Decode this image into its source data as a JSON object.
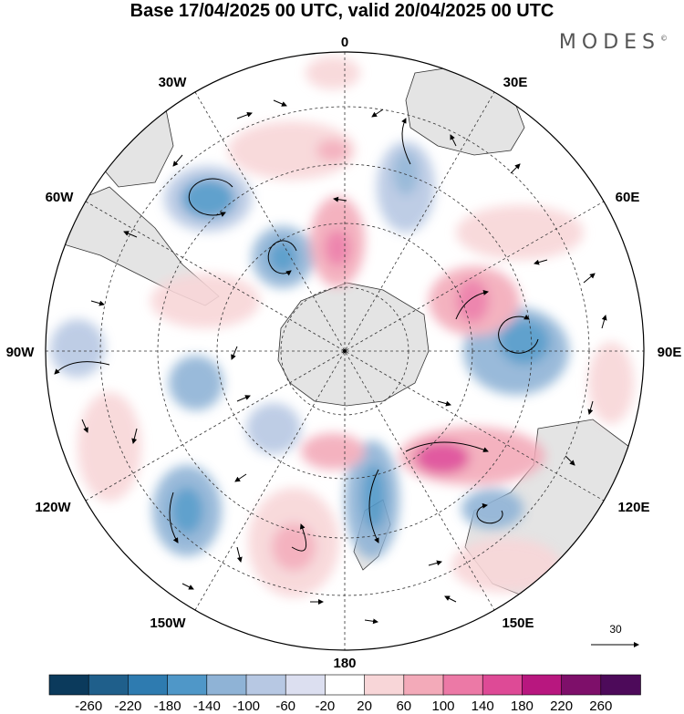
{
  "title": "Base 17/04/2025 00 UTC, valid 20/04/2025 00 UTC",
  "brand": "MODES",
  "brand_mark": "©",
  "longitude_labels": {
    "top": "0",
    "top_right": "30E",
    "right_upper": "60E",
    "right": "90E",
    "right_lower": "120E",
    "bottom_right": "150E",
    "bottom": "180",
    "bottom_left": "150W",
    "left_lower": "120W",
    "left": "90W",
    "left_upper": "60W",
    "top_left": "30W"
  },
  "reference_vector": {
    "label": "30",
    "icon": "arrow-right-icon"
  },
  "colorbar": {
    "ticks": [
      "-260",
      "-220",
      "-180",
      "-140",
      "-100",
      "-60",
      "-20",
      "20",
      "60",
      "100",
      "140",
      "180",
      "220",
      "260"
    ],
    "colors": [
      "#0b3a5c",
      "#1f5f8b",
      "#2e7bb0",
      "#4f97c8",
      "#8fb3d6",
      "#b7c8e3",
      "#dcdff0",
      "#ffffff",
      "#f8d6d8",
      "#f3aab9",
      "#ec79a6",
      "#de4a96",
      "#b8177f",
      "#7e0f6a",
      "#4d0a5a"
    ]
  },
  "colors": {
    "land": "#e4e4e4",
    "positive_anomaly": "#ec79a6",
    "negative_anomaly": "#4f97c8"
  }
}
